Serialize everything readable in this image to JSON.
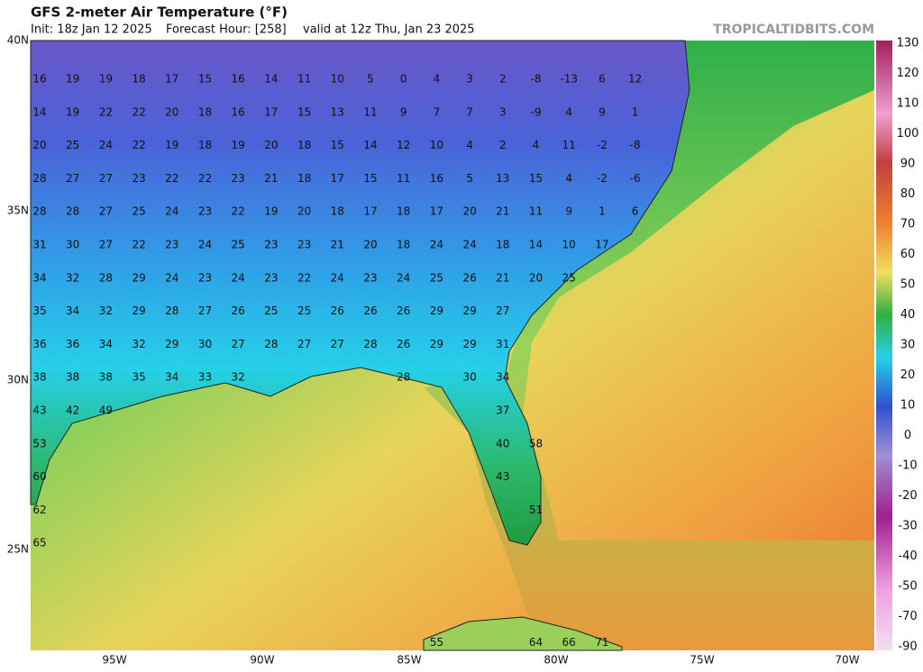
{
  "header": {
    "title": "GFS 2-meter Air Temperature (°F)",
    "init": "Init: 18z Jan 12 2025",
    "forecast_hour": "Forecast Hour: [258]",
    "valid": "valid at 12z Thu, Jan 23 2025",
    "brand": "TROPICALTIDBITS.COM"
  },
  "map": {
    "lat_labels": [
      "40N",
      "35N",
      "30N",
      "25N"
    ],
    "lon_labels": [
      "95W",
      "90W",
      "85W",
      "80W",
      "75W",
      "70W"
    ],
    "stations": [
      [
        16,
        19,
        19,
        18,
        17,
        15,
        16,
        14,
        11,
        10,
        5,
        0,
        4,
        3,
        2,
        -8,
        -13,
        6,
        12,
        null
      ],
      [
        14,
        19,
        22,
        22,
        20,
        18,
        16,
        17,
        15,
        13,
        11,
        9,
        7,
        7,
        3,
        -9,
        4,
        9,
        1,
        null
      ],
      [
        20,
        25,
        24,
        22,
        19,
        18,
        19,
        20,
        18,
        15,
        14,
        12,
        10,
        4,
        2,
        4,
        11,
        -2,
        -8,
        null
      ],
      [
        28,
        27,
        27,
        23,
        22,
        22,
        23,
        21,
        18,
        17,
        15,
        11,
        16,
        5,
        13,
        15,
        4,
        -2,
        -6,
        null
      ],
      [
        28,
        28,
        27,
        25,
        24,
        23,
        22,
        19,
        20,
        18,
        17,
        18,
        17,
        20,
        21,
        11,
        9,
        1,
        6,
        null
      ],
      [
        31,
        30,
        27,
        22,
        23,
        24,
        25,
        23,
        23,
        21,
        20,
        18,
        24,
        24,
        18,
        14,
        10,
        17,
        null,
        null
      ],
      [
        34,
        32,
        28,
        29,
        24,
        23,
        24,
        23,
        22,
        24,
        23,
        24,
        25,
        26,
        21,
        20,
        25,
        null,
        null,
        null
      ],
      [
        35,
        34,
        32,
        29,
        28,
        27,
        26,
        25,
        25,
        26,
        26,
        26,
        29,
        29,
        27,
        null,
        null,
        null,
        null,
        null
      ],
      [
        36,
        36,
        34,
        32,
        29,
        30,
        27,
        28,
        27,
        27,
        28,
        26,
        29,
        29,
        31,
        null,
        null,
        null,
        null,
        null
      ],
      [
        38,
        38,
        38,
        35,
        34,
        33,
        32,
        null,
        null,
        null,
        null,
        28,
        null,
        30,
        34,
        null,
        null,
        null,
        null,
        null
      ],
      [
        43,
        42,
        49,
        null,
        null,
        null,
        null,
        null,
        null,
        null,
        null,
        null,
        null,
        null,
        37,
        null,
        null,
        null,
        null,
        null
      ],
      [
        53,
        null,
        null,
        null,
        null,
        null,
        null,
        null,
        null,
        null,
        null,
        null,
        null,
        null,
        40,
        58,
        null,
        null,
        null,
        null
      ],
      [
        60,
        null,
        null,
        null,
        null,
        null,
        null,
        null,
        null,
        null,
        null,
        null,
        null,
        null,
        43,
        null,
        null,
        null,
        null,
        null
      ],
      [
        62,
        null,
        null,
        null,
        null,
        null,
        null,
        null,
        null,
        null,
        null,
        null,
        null,
        null,
        null,
        51,
        null,
        null,
        null,
        null
      ],
      [
        65,
        null,
        null,
        null,
        null,
        null,
        null,
        null,
        null,
        null,
        null,
        null,
        null,
        null,
        null,
        null,
        null,
        null,
        null,
        null
      ],
      [
        null,
        null,
        null,
        null,
        null,
        null,
        null,
        null,
        null,
        null,
        null,
        null,
        null,
        null,
        null,
        null,
        null,
        null,
        null,
        null
      ],
      [
        null,
        null,
        null,
        null,
        null,
        null,
        null,
        null,
        null,
        null,
        null,
        null,
        null,
        null,
        null,
        null,
        null,
        null,
        null,
        null
      ],
      [
        null,
        null,
        null,
        null,
        null,
        null,
        null,
        null,
        null,
        null,
        null,
        null,
        55,
        null,
        null,
        64,
        66,
        71,
        null,
        null
      ]
    ]
  },
  "colorbar": {
    "labels": [
      130,
      120,
      110,
      100,
      90,
      80,
      70,
      60,
      50,
      40,
      30,
      20,
      10,
      0,
      -10,
      -20,
      -30,
      -40,
      -50,
      -70,
      -90
    ]
  }
}
